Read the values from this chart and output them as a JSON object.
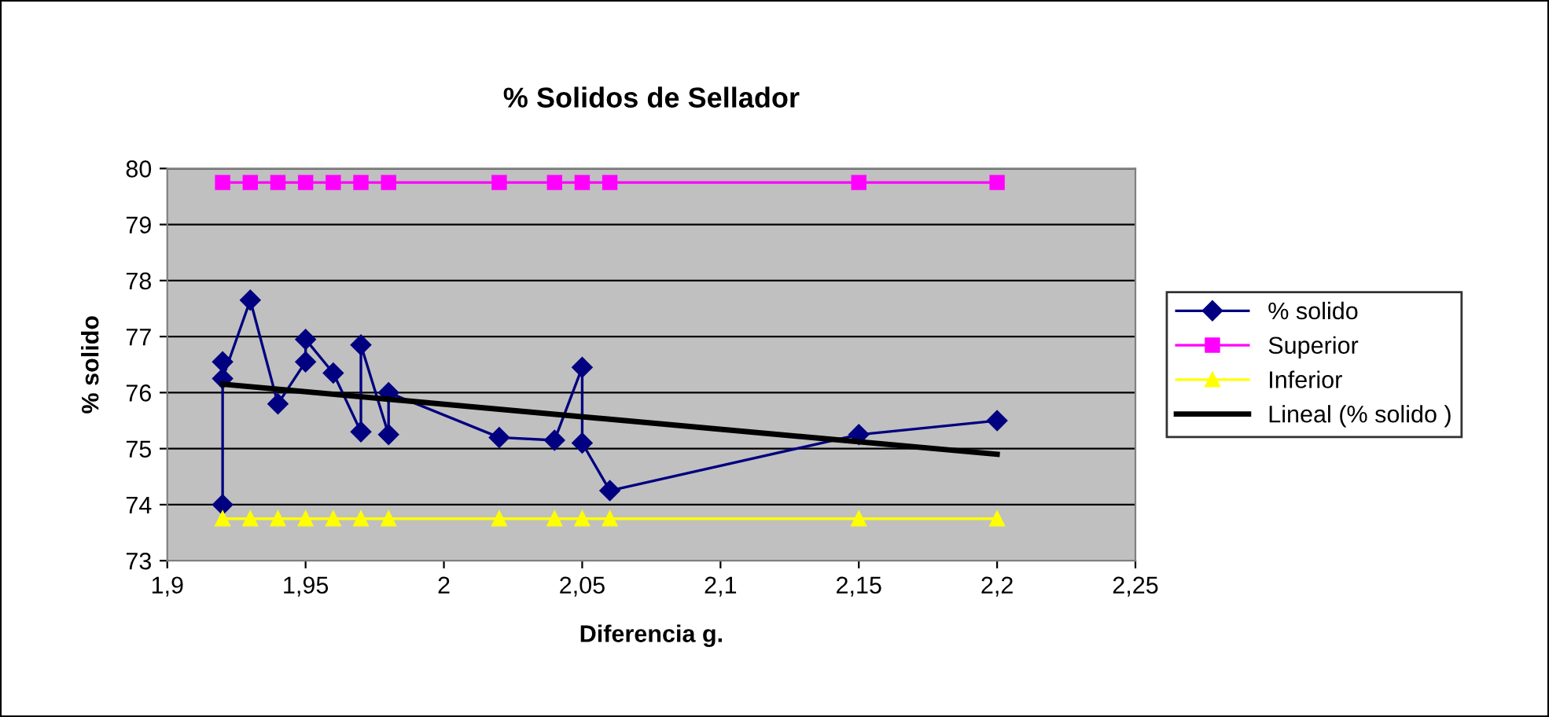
{
  "chart_data": {
    "type": "line",
    "title": "% Solidos de Sellador",
    "xlabel": "Diferencia g.",
    "ylabel": "% solido",
    "xlim": [
      1.9,
      2.25
    ],
    "xticks": [
      {
        "value": 1.9,
        "label": "1,9"
      },
      {
        "value": 1.95,
        "label": "1,95"
      },
      {
        "value": 2,
        "label": "2"
      },
      {
        "value": 2.05,
        "label": "2,05"
      },
      {
        "value": 2.1,
        "label": "2,1"
      },
      {
        "value": 2.15,
        "label": "2,15"
      },
      {
        "value": 2.2,
        "label": "2,2"
      },
      {
        "value": 2.25,
        "label": "2,25"
      }
    ],
    "ylim": [
      73,
      80
    ],
    "yticks": [
      73,
      74,
      75,
      76,
      77,
      78,
      79,
      80
    ],
    "grid": "y",
    "legend": "right",
    "series": [
      {
        "name": "% solido",
        "color": "#000080",
        "marker": "diamond",
        "x": [
          1.92,
          1.92,
          1.92,
          1.93,
          1.94,
          1.95,
          1.95,
          1.96,
          1.97,
          1.97,
          1.98,
          1.98,
          2.02,
          2.04,
          2.05,
          2.05,
          2.06,
          2.15,
          2.2
        ],
        "values": [
          76.55,
          74.0,
          76.25,
          77.65,
          75.8,
          76.55,
          76.95,
          76.35,
          75.3,
          76.85,
          75.25,
          76.0,
          75.2,
          75.15,
          76.45,
          75.1,
          74.25,
          75.25,
          75.5
        ]
      },
      {
        "name": "Superior",
        "color": "#ff00ff",
        "marker": "square",
        "x": [
          1.92,
          1.93,
          1.94,
          1.95,
          1.96,
          1.97,
          1.98,
          2.02,
          2.04,
          2.05,
          2.06,
          2.15,
          2.2
        ],
        "values": [
          79.75,
          79.75,
          79.75,
          79.75,
          79.75,
          79.75,
          79.75,
          79.75,
          79.75,
          79.75,
          79.75,
          79.75,
          79.75
        ]
      },
      {
        "name": "Inferior",
        "color": "#ffff00",
        "marker": "triangle",
        "x": [
          1.92,
          1.93,
          1.94,
          1.95,
          1.96,
          1.97,
          1.98,
          2.02,
          2.04,
          2.05,
          2.06,
          2.15,
          2.2
        ],
        "values": [
          73.75,
          73.75,
          73.75,
          73.75,
          73.75,
          73.75,
          73.75,
          73.75,
          73.75,
          73.75,
          73.75,
          73.75,
          73.75
        ]
      },
      {
        "name": "Lineal (% solido )",
        "color": "#000000",
        "marker": "none",
        "x": [
          1.92,
          2.2
        ],
        "values": [
          76.15,
          74.9
        ]
      }
    ]
  }
}
